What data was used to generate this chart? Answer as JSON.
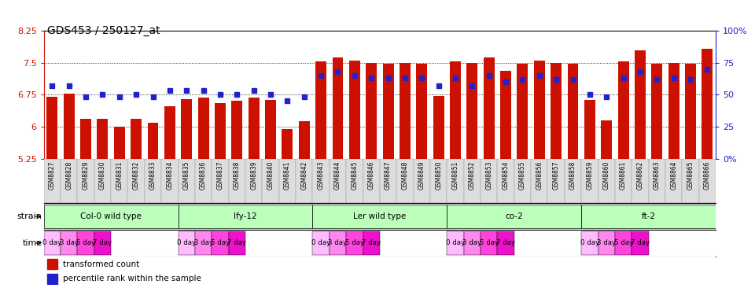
{
  "title": "GDS453 / 250127_at",
  "xlabels": [
    "GSM8827",
    "GSM8828",
    "GSM8829",
    "GSM8830",
    "GSM8831",
    "GSM8832",
    "GSM8833",
    "GSM8834",
    "GSM8835",
    "GSM8836",
    "GSM8837",
    "GSM8838",
    "GSM8839",
    "GSM8840",
    "GSM8841",
    "GSM8842",
    "GSM8843",
    "GSM8844",
    "GSM8845",
    "GSM8846",
    "GSM8847",
    "GSM8848",
    "GSM8849",
    "GSM8850",
    "GSM8851",
    "GSM8852",
    "GSM8853",
    "GSM8854",
    "GSM8855",
    "GSM8856",
    "GSM8857",
    "GSM8858",
    "GSM8859",
    "GSM8860",
    "GSM8861",
    "GSM8862",
    "GSM8863",
    "GSM8864",
    "GSM8865",
    "GSM8866"
  ],
  "bar_values": [
    6.7,
    6.78,
    6.18,
    6.18,
    6.0,
    6.18,
    6.1,
    6.48,
    6.65,
    6.68,
    6.55,
    6.6,
    6.68,
    6.63,
    5.95,
    6.12,
    7.52,
    7.62,
    7.55,
    7.5,
    7.48,
    7.5,
    7.48,
    6.72,
    7.52,
    7.5,
    7.62,
    7.3,
    7.48,
    7.55,
    7.5,
    7.48,
    6.62,
    6.15,
    7.52,
    7.78,
    7.48,
    7.5,
    7.48,
    7.82
  ],
  "percentile_values": [
    57,
    57,
    48,
    50,
    48,
    50,
    48,
    53,
    53,
    53,
    50,
    50,
    53,
    50,
    45,
    48,
    65,
    68,
    65,
    63,
    63,
    63,
    63,
    57,
    63,
    57,
    65,
    60,
    62,
    65,
    62,
    62,
    50,
    48,
    63,
    68,
    62,
    63,
    62,
    70
  ],
  "ymin": 5.25,
  "ymax": 8.25,
  "yticks": [
    5.25,
    6.0,
    6.75,
    7.5,
    8.25
  ],
  "ytick_labels": [
    "5.25",
    "6",
    "6.75",
    "7.5",
    "8.25"
  ],
  "right_yticks": [
    0,
    25,
    50,
    75,
    100
  ],
  "right_ytick_labels": [
    "0%",
    "25",
    "50",
    "75",
    "100%"
  ],
  "bar_color": "#cc1100",
  "marker_color": "#2222cc",
  "strains": [
    {
      "name": "Col-0 wild type",
      "start": 0,
      "end": 7
    },
    {
      "name": "lfy-12",
      "start": 8,
      "end": 15
    },
    {
      "name": "Ler wild type",
      "start": 16,
      "end": 23
    },
    {
      "name": "co-2",
      "start": 24,
      "end": 31
    },
    {
      "name": "ft-2",
      "start": 32,
      "end": 39
    }
  ],
  "strain_bg": "#bbffbb",
  "times": [
    "0 day",
    "3 day",
    "5 day",
    "7 day"
  ],
  "time_colors": [
    "#ffbbff",
    "#ff88ee",
    "#ff44dd",
    "#ee11cc"
  ],
  "bg_color": "#ffffff",
  "xlabel_bg": "#dddddd"
}
